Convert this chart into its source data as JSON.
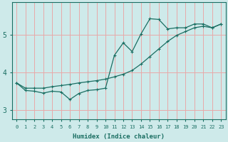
{
  "xlabel": "Humidex (Indice chaleur)",
  "ylabel": "",
  "background_color": "#ceeaea",
  "grid_color": "#e8a8a8",
  "line_color": "#1a6e62",
  "x_data": [
    0,
    1,
    2,
    3,
    4,
    5,
    6,
    7,
    8,
    9,
    10,
    11,
    12,
    13,
    14,
    15,
    16,
    17,
    18,
    19,
    20,
    21,
    22,
    23
  ],
  "y_line1": [
    3.72,
    3.52,
    3.5,
    3.45,
    3.5,
    3.48,
    3.28,
    3.44,
    3.52,
    3.54,
    3.58,
    4.45,
    4.78,
    4.55,
    5.02,
    5.42,
    5.4,
    5.15,
    5.18,
    5.18,
    5.28,
    5.28,
    5.18,
    5.28
  ],
  "y_line2": [
    3.72,
    3.58,
    3.58,
    3.58,
    3.62,
    3.65,
    3.68,
    3.72,
    3.75,
    3.78,
    3.82,
    3.88,
    3.95,
    4.05,
    4.22,
    4.42,
    4.62,
    4.82,
    4.98,
    5.08,
    5.18,
    5.22,
    5.18,
    5.28
  ],
  "ylim": [
    2.75,
    5.85
  ],
  "yticks": [
    3,
    4,
    5
  ],
  "xticks": [
    0,
    1,
    2,
    3,
    4,
    5,
    6,
    7,
    8,
    9,
    10,
    11,
    12,
    13,
    14,
    15,
    16,
    17,
    18,
    19,
    20,
    21,
    22,
    23
  ]
}
